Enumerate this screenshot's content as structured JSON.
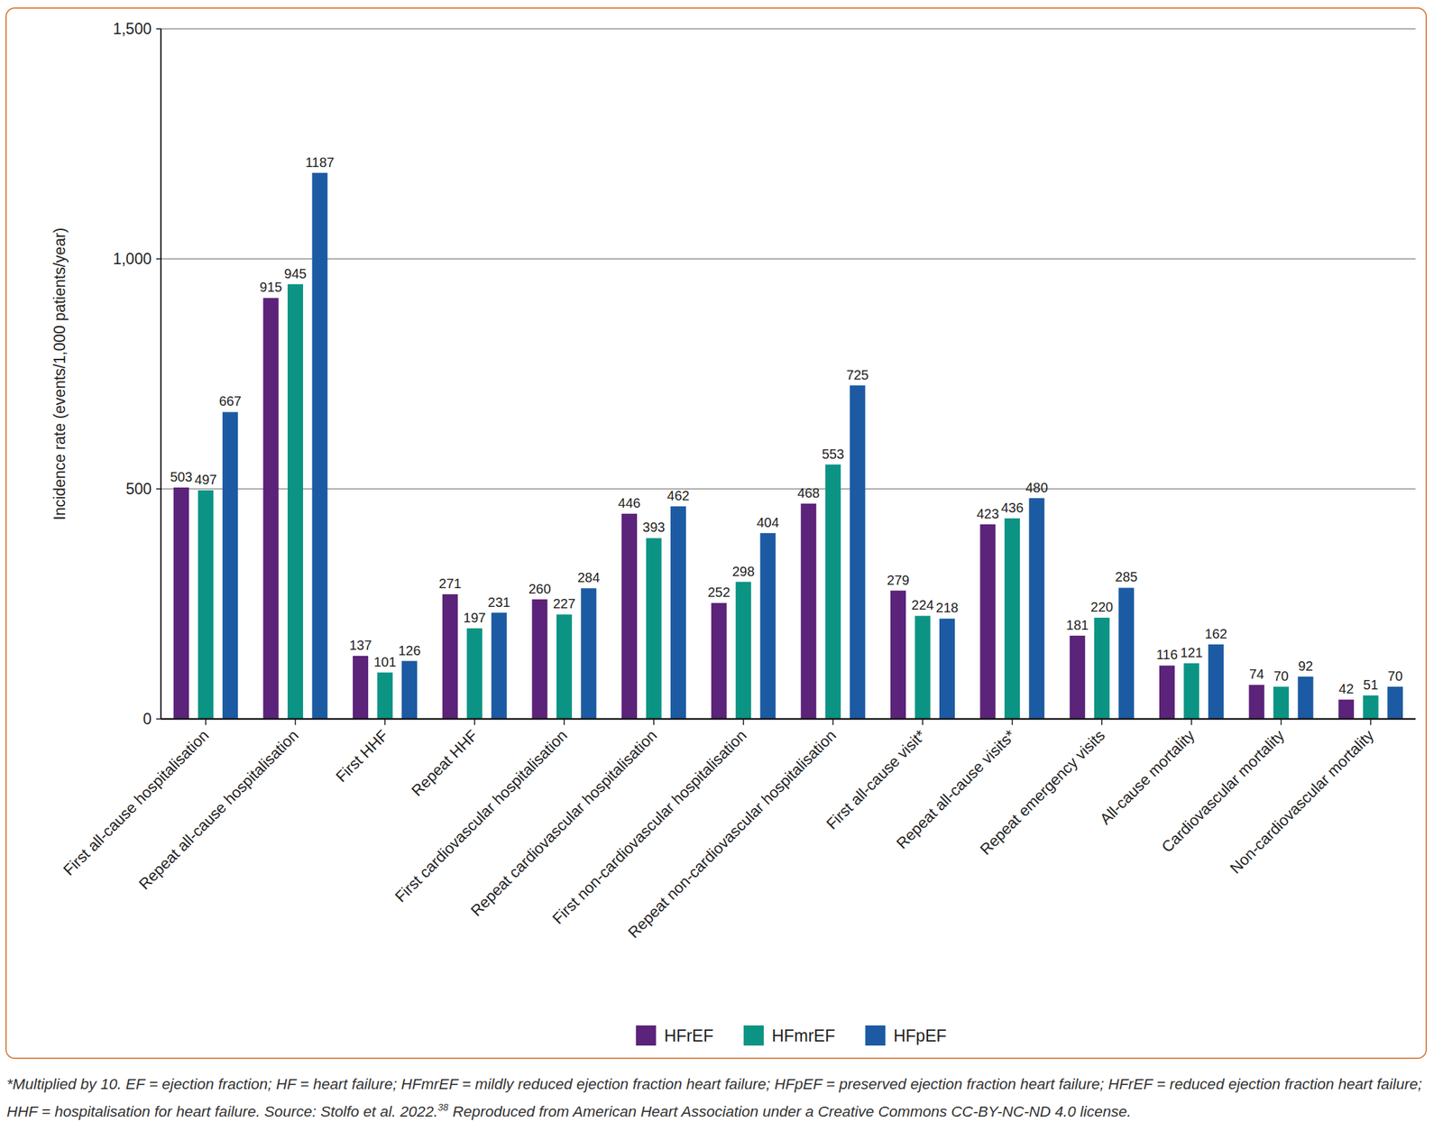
{
  "chart_data": {
    "type": "bar",
    "y_label": "Incidence rate (events/1,000 patients/year)",
    "categories": [
      "First all-cause hospitalisation",
      "Repeat all-cause hospitalisation",
      "First HHF",
      "Repeat HHF",
      "First cardiovascular hospitalisation",
      "Repeat cardiovascular hospitalisation",
      "First non-cardiovascular hospitalisation",
      "Repeat non-cardiovascular hospitalisation",
      "First all-cause visit*",
      "Repeat all-cause visits*",
      "Repeat emergency visits",
      "All-cause mortality",
      "Cardiovascular mortality",
      "Non-cardiovascular mortality"
    ],
    "series": [
      {
        "name": "HFrEF",
        "color": "#5b2379",
        "values": [
          503,
          915,
          137,
          271,
          260,
          446,
          252,
          468,
          279,
          423,
          181,
          116,
          74,
          42
        ]
      },
      {
        "name": "HFmrEF",
        "color": "#0b9484",
        "values": [
          497,
          945,
          101,
          197,
          227,
          393,
          298,
          553,
          224,
          436,
          220,
          121,
          70,
          51
        ]
      },
      {
        "name": "HFpEF",
        "color": "#1c5ba3",
        "values": [
          667,
          1187,
          126,
          231,
          284,
          462,
          404,
          725,
          218,
          480,
          285,
          162,
          92,
          70
        ]
      }
    ],
    "ylim": [
      0,
      1500
    ],
    "yticks": [
      0,
      500,
      {
        "value": 1000,
        "label": "1,000"
      },
      {
        "value": 1500,
        "label": "1,500"
      }
    ],
    "grid": true,
    "legend": "bottom",
    "data_labels": true,
    "caption": [
      "*Multiplied by 10. EF = ejection fraction; HF = heart failure; HFmrEF = mildly reduced ejection fraction heart failure; HFpEF = preserved ejection fraction heart failure; HFrEF = reduced ejection fraction heart failure; HHF = hospitalisation for heart failure. Source: Stolfo et al. 2022.",
      "38",
      " Reproduced from American Heart Association under a Creative Commons CC-BY-NC-ND 4.0 license."
    ]
  }
}
